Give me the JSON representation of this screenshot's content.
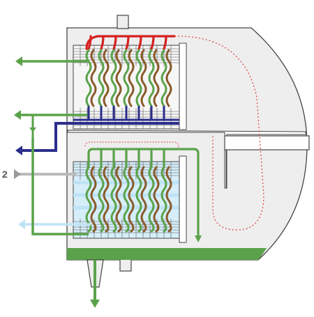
{
  "labels": {
    "callout_2": "2"
  },
  "colors": {
    "shell_fill": "#eeeeee",
    "shell_stroke": "#444444",
    "hot_red": "#d62020",
    "green": "#5aa24a",
    "dark_blue": "#2b2e8a",
    "brown": "#8a5a2a",
    "light_blue": "#bfe3f6",
    "grey_inlet": "#bbbbbb",
    "dotted_red": "#e23b3b",
    "grid": "#555555"
  },
  "icons": [
    "arrow-icon"
  ]
}
